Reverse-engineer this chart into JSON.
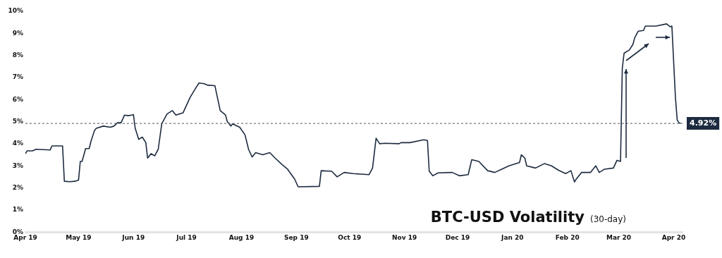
{
  "chart_data": {
    "type": "line",
    "title": "BTC-USD Volatility",
    "subtitle": "(30-day)",
    "marker": "none",
    "line_style": "solid",
    "xlim": [
      "2019-04-01",
      "2020-04-06"
    ],
    "xticks": [
      {
        "value": "2019-04-01",
        "label": "Apr 19"
      },
      {
        "value": "2019-05-01",
        "label": "May 19"
      },
      {
        "value": "2019-06-01",
        "label": "Jun 19"
      },
      {
        "value": "2019-07-01",
        "label": "Jul 19"
      },
      {
        "value": "2019-08-01",
        "label": "Aug 19"
      },
      {
        "value": "2019-09-01",
        "label": "Sep 19"
      },
      {
        "value": "2019-10-01",
        "label": "Oct 19"
      },
      {
        "value": "2019-11-01",
        "label": "Nov 19"
      },
      {
        "value": "2019-12-01",
        "label": "Dec 19"
      },
      {
        "value": "2020-01-01",
        "label": "Jan 20"
      },
      {
        "value": "2020-02-01",
        "label": "Feb 20"
      },
      {
        "value": "2020-03-01",
        "label": "Mar 20"
      },
      {
        "value": "2020-04-01",
        "label": "Apr 20"
      }
    ],
    "ylim": [
      0,
      10
    ],
    "yticks": [
      {
        "value": 0,
        "label": "0%"
      },
      {
        "value": 1,
        "label": "1%"
      },
      {
        "value": 2,
        "label": "2%"
      },
      {
        "value": 3,
        "label": "3%"
      },
      {
        "value": 4,
        "label": "4%"
      },
      {
        "value": 5,
        "label": "5%"
      },
      {
        "value": 6,
        "label": "6%"
      },
      {
        "value": 7,
        "label": "7%"
      },
      {
        "value": 8,
        "label": "8%"
      },
      {
        "value": 9,
        "label": "9%"
      },
      {
        "value": 10,
        "label": "10%"
      }
    ],
    "ref_lines": [
      {
        "axis": "y",
        "value": 4.92,
        "label": "4.92%",
        "color": "#555555",
        "line_style": "dashed"
      }
    ],
    "series": [
      {
        "color": "#1c2b3f",
        "x": [
          "2019-04-01",
          "2019-04-02",
          "2019-04-05",
          "2019-04-07",
          "2019-04-15",
          "2019-04-16",
          "2019-04-22",
          "2019-04-23",
          "2019-04-26",
          "2019-04-29",
          "2019-05-01",
          "2019-05-02",
          "2019-05-03",
          "2019-05-05",
          "2019-05-07",
          "2019-05-08",
          "2019-05-10",
          "2019-05-11",
          "2019-05-15",
          "2019-05-19",
          "2019-05-21",
          "2019-05-23",
          "2019-05-25",
          "2019-05-27",
          "2019-05-29",
          "2019-05-31",
          "2019-06-01",
          "2019-06-02",
          "2019-06-04",
          "2019-06-06",
          "2019-06-08",
          "2019-06-09",
          "2019-06-11",
          "2019-06-13",
          "2019-06-15",
          "2019-06-17",
          "2019-06-20",
          "2019-06-23",
          "2019-06-25",
          "2019-06-29",
          "2019-07-01",
          "2019-07-03",
          "2019-07-06",
          "2019-07-08",
          "2019-07-11",
          "2019-07-13",
          "2019-07-17",
          "2019-07-18",
          "2019-07-20",
          "2019-07-23",
          "2019-07-24",
          "2019-07-26",
          "2019-07-27",
          "2019-07-31",
          "2019-08-03",
          "2019-08-05",
          "2019-08-07",
          "2019-08-09",
          "2019-08-13",
          "2019-08-17",
          "2019-08-20",
          "2019-08-24",
          "2019-08-27",
          "2019-08-31",
          "2019-09-02",
          "2019-09-14",
          "2019-09-15",
          "2019-09-21",
          "2019-09-24",
          "2019-09-28",
          "2019-10-03",
          "2019-10-12",
          "2019-10-14",
          "2019-10-16",
          "2019-10-18",
          "2019-10-21",
          "2019-10-29",
          "2019-10-30",
          "2019-11-04",
          "2019-11-12",
          "2019-11-14",
          "2019-11-15",
          "2019-11-17",
          "2019-11-20",
          "2019-11-28",
          "2019-12-02",
          "2019-12-07",
          "2019-12-09",
          "2019-12-13",
          "2019-12-18",
          "2019-12-22",
          "2019-12-26",
          "2019-12-30",
          "2020-01-05",
          "2020-01-06",
          "2020-01-08",
          "2020-01-09",
          "2020-01-14",
          "2020-01-19",
          "2020-01-23",
          "2020-01-27",
          "2020-01-31",
          "2020-02-03",
          "2020-02-05",
          "2020-02-06",
          "2020-02-09",
          "2020-02-14",
          "2020-02-17",
          "2020-02-19",
          "2020-02-22",
          "2020-02-27",
          "2020-02-29",
          "2020-03-02",
          "2020-03-03",
          "2020-03-04",
          "2020-03-07",
          "2020-03-09",
          "2020-03-10",
          "2020-03-12",
          "2020-03-15",
          "2020-03-16",
          "2020-03-22",
          "2020-03-28",
          "2020-03-30",
          "2020-03-31",
          "2020-04-02",
          "2020-04-03",
          "2020-04-04",
          "2020-04-05"
        ],
        "values": [
          3.55,
          3.68,
          3.68,
          3.75,
          3.72,
          3.9,
          3.9,
          2.3,
          2.28,
          2.3,
          2.35,
          3.2,
          3.2,
          3.78,
          3.78,
          4.1,
          4.6,
          4.7,
          4.8,
          4.75,
          4.8,
          4.95,
          4.95,
          5.3,
          5.27,
          5.3,
          5.32,
          4.7,
          4.2,
          4.3,
          4.05,
          3.35,
          3.55,
          3.45,
          3.75,
          4.9,
          5.35,
          5.5,
          5.3,
          5.4,
          5.75,
          6.1,
          6.5,
          6.75,
          6.72,
          6.65,
          6.63,
          6.25,
          5.5,
          5.3,
          5.0,
          4.8,
          4.9,
          4.75,
          4.4,
          3.75,
          3.4,
          3.6,
          3.5,
          3.6,
          3.35,
          3.05,
          2.85,
          2.4,
          2.05,
          2.07,
          2.78,
          2.75,
          2.5,
          2.7,
          2.65,
          2.6,
          2.9,
          4.25,
          4.0,
          4.02,
          4.0,
          4.05,
          4.05,
          4.18,
          4.15,
          2.75,
          2.55,
          2.68,
          2.7,
          2.55,
          2.6,
          3.28,
          3.2,
          2.78,
          2.7,
          2.85,
          3.0,
          3.15,
          3.5,
          3.35,
          3.0,
          2.9,
          3.1,
          3.0,
          2.8,
          2.65,
          2.78,
          2.27,
          2.4,
          2.7,
          2.7,
          3.0,
          2.7,
          2.85,
          2.9,
          3.25,
          3.2,
          7.42,
          8.1,
          8.25,
          8.5,
          8.8,
          9.1,
          9.13,
          9.33,
          9.33,
          9.43,
          9.3,
          9.33,
          6.1,
          5.08,
          4.95,
          4.92
        ]
      }
    ]
  }
}
